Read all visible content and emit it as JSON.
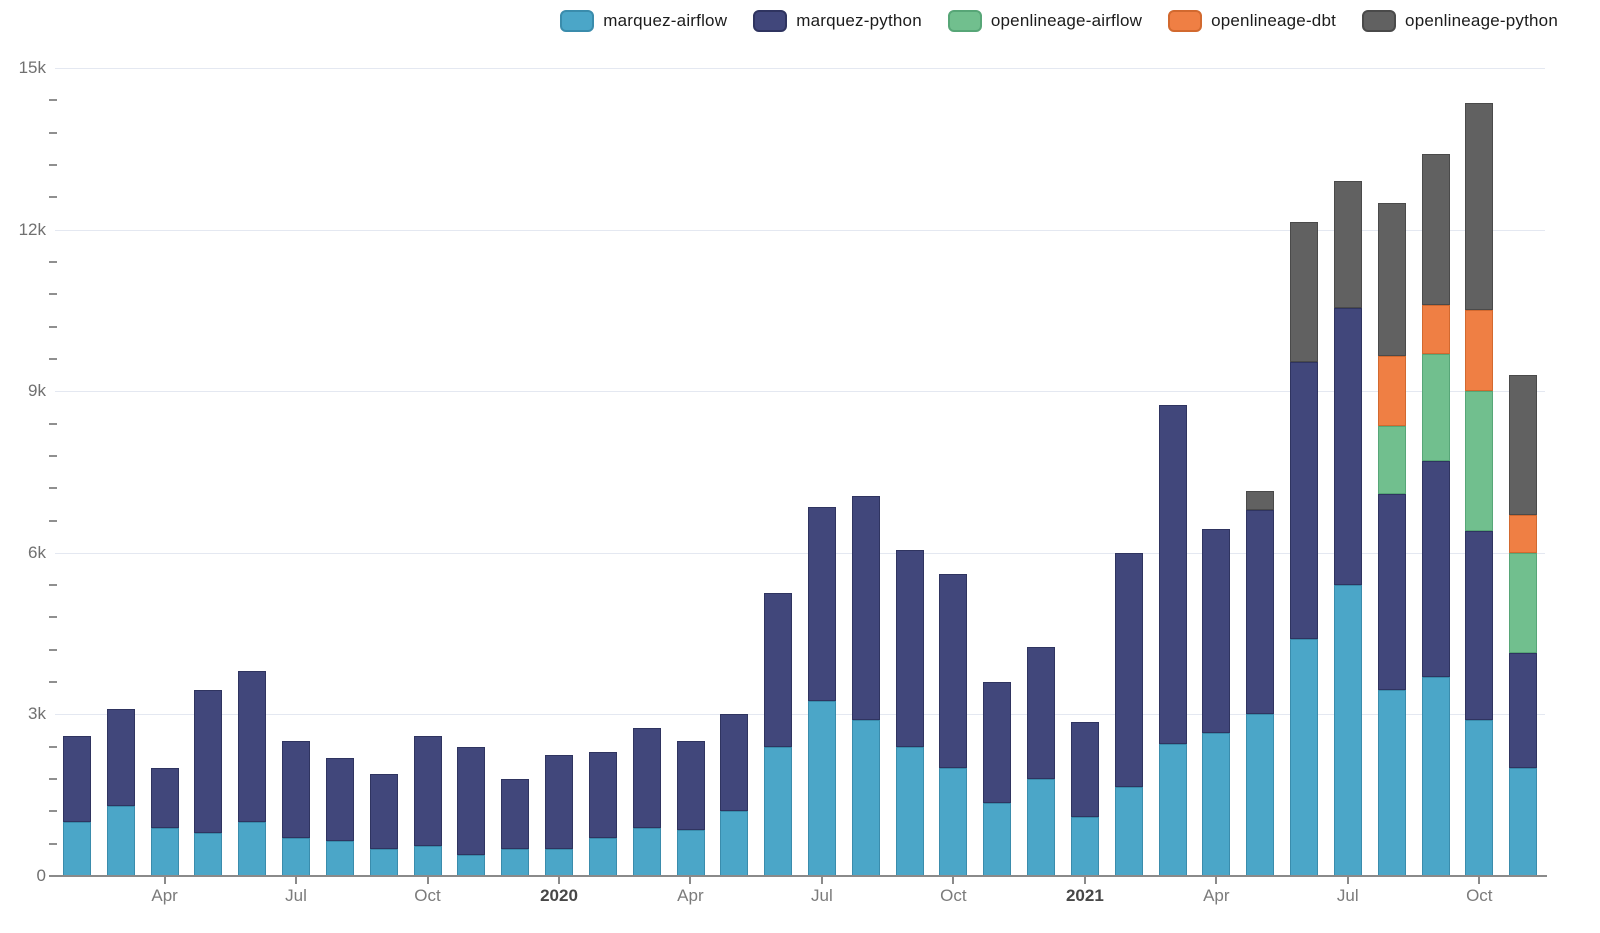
{
  "legend": {
    "position": "top-right"
  },
  "chart_data": {
    "type": "bar",
    "stacked": true,
    "title": "",
    "xlabel": "",
    "ylabel": "",
    "ylim": [
      0,
      15000
    ],
    "grid": "horizontal",
    "legend_position": "top",
    "y_ticks": [
      {
        "value": 0,
        "label": "0"
      },
      {
        "value": 3000,
        "label": "3k"
      },
      {
        "value": 6000,
        "label": "6k"
      },
      {
        "value": 9000,
        "label": "9k"
      },
      {
        "value": 12000,
        "label": "12k"
      },
      {
        "value": 15000,
        "label": "15k"
      }
    ],
    "y_minor_step": 600,
    "categories": [
      "Feb 2019",
      "Mar 2019",
      "Apr 2019",
      "May 2019",
      "Jun 2019",
      "Jul 2019",
      "Aug 2019",
      "Sep 2019",
      "Oct 2019",
      "Nov 2019",
      "Dec 2019",
      "Jan 2020",
      "Feb 2020",
      "Mar 2020",
      "Apr 2020",
      "May 2020",
      "Jun 2020",
      "Jul 2020",
      "Aug 2020",
      "Sep 2020",
      "Oct 2020",
      "Nov 2020",
      "Dec 2020",
      "Jan 2021",
      "Feb 2021",
      "Mar 2021",
      "Apr 2021",
      "May 2021",
      "Jun 2021",
      "Jul 2021",
      "Aug 2021",
      "Sep 2021",
      "Oct 2021",
      "Nov 2021"
    ],
    "x_ticks": [
      {
        "index": 2,
        "label": "Apr",
        "bold": false
      },
      {
        "index": 5,
        "label": "Jul",
        "bold": false
      },
      {
        "index": 8,
        "label": "Oct",
        "bold": false
      },
      {
        "index": 11,
        "label": "2020",
        "bold": true
      },
      {
        "index": 14,
        "label": "Apr",
        "bold": false
      },
      {
        "index": 17,
        "label": "Jul",
        "bold": false
      },
      {
        "index": 20,
        "label": "Oct",
        "bold": false
      },
      {
        "index": 23,
        "label": "2021",
        "bold": true
      },
      {
        "index": 26,
        "label": "Apr",
        "bold": false
      },
      {
        "index": 29,
        "label": "Jul",
        "bold": false
      },
      {
        "index": 32,
        "label": "Oct",
        "bold": false
      }
    ],
    "series": [
      {
        "name": "marquez-airflow",
        "color": "#4BA6C8",
        "border_color": "#3A8CAC",
        "values": [
          1000,
          1300,
          900,
          800,
          1000,
          700,
          650,
          500,
          550,
          400,
          500,
          500,
          700,
          900,
          850,
          1200,
          2400,
          3250,
          2900,
          2400,
          2000,
          1350,
          1800,
          1100,
          1650,
          2450,
          2650,
          3000,
          4400,
          5400,
          3450,
          3700,
          2900,
          2000
        ]
      },
      {
        "name": "marquez-python",
        "color": "#41477B",
        "border_color": "#2F3460",
        "values": [
          1600,
          1800,
          1100,
          2650,
          2800,
          1800,
          1550,
          1400,
          2050,
          2000,
          1300,
          1750,
          1600,
          1850,
          1650,
          1800,
          2850,
          3600,
          4150,
          3650,
          3600,
          2250,
          2450,
          1750,
          4350,
          6300,
          3800,
          3800,
          5150,
          5150,
          3650,
          4000,
          3500,
          2150
        ]
      },
      {
        "name": "openlineage-airflow",
        "color": "#71BF8E",
        "border_color": "#57A677",
        "values": [
          0,
          0,
          0,
          0,
          0,
          0,
          0,
          0,
          0,
          0,
          0,
          0,
          0,
          0,
          0,
          0,
          0,
          0,
          0,
          0,
          0,
          0,
          0,
          0,
          0,
          0,
          0,
          0,
          0,
          0,
          1250,
          2000,
          2600,
          1850
        ]
      },
      {
        "name": "openlineage-dbt",
        "color": "#EF7F44",
        "border_color": "#D2692F",
        "values": [
          0,
          0,
          0,
          0,
          0,
          0,
          0,
          0,
          0,
          0,
          0,
          0,
          0,
          0,
          0,
          0,
          0,
          0,
          0,
          0,
          0,
          0,
          0,
          0,
          0,
          0,
          0,
          0,
          0,
          0,
          1300,
          900,
          1500,
          700
        ]
      },
      {
        "name": "openlineage-python",
        "color": "#616161",
        "border_color": "#4A4A4A",
        "values": [
          0,
          0,
          0,
          0,
          0,
          0,
          0,
          0,
          0,
          0,
          0,
          0,
          0,
          0,
          0,
          0,
          0,
          0,
          0,
          0,
          0,
          0,
          0,
          0,
          0,
          0,
          0,
          350,
          2600,
          2350,
          2850,
          2800,
          3850,
          2600
        ]
      }
    ]
  }
}
